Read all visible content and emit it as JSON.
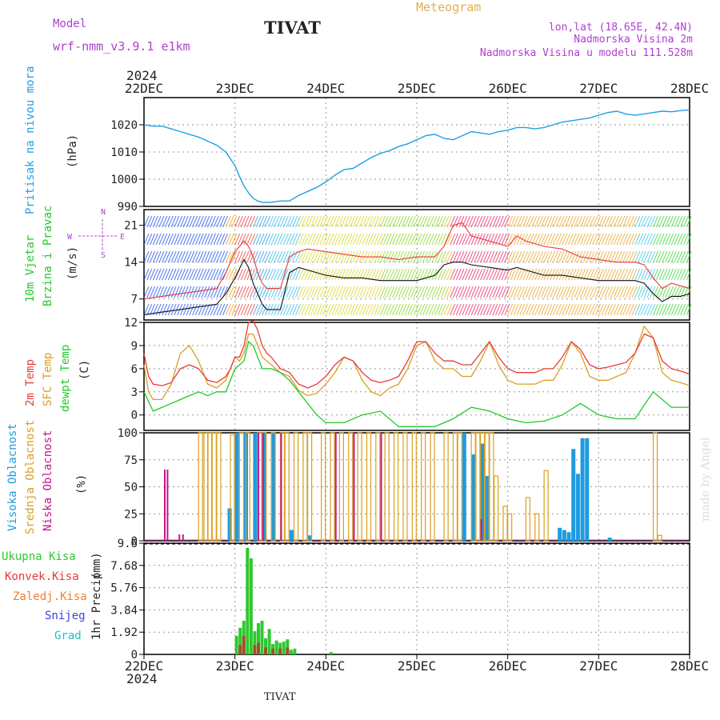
{
  "header": {
    "model_label": "Model",
    "model_name": "wrf-nmm_v3.9.1 e1km",
    "station": "TIVAT",
    "chart_title": "Meteogram",
    "lonlat": "lon,lat (18.65E, 42.4N)",
    "elevation": "Nadmorska Visina 2m",
    "model_elevation": "Nadmorska Visina u modelu 111.528m",
    "year": "2024",
    "footer_station": "TIVAT",
    "watermark": "made by Angel"
  },
  "colors": {
    "pressure": "#1ea0e6",
    "temp2m": "#e83a3a",
    "sfctemp": "#d9a020",
    "dewpt": "#22c82a",
    "high_cloud": "#1e9be0",
    "mid_cloud": "#d9a020",
    "low_cloud": "#c8148c",
    "total_precip": "#2ec82e",
    "conv_precip": "#e83a3a",
    "frozen_precip": "#f08030",
    "snow": "#4040e0",
    "graupel": "#20c0c0",
    "label_purple": "#b040d0"
  },
  "chart_data": [
    {
      "type": "line",
      "name": "pressure-panel",
      "ylabel": "Pritisak na nivou mora",
      "unit": "(hPa)",
      "ylim": [
        990,
        1030
      ],
      "yticks": [
        990,
        1000,
        1010,
        1020
      ],
      "x_days": [
        "22DEC",
        "23DEC",
        "24DEC",
        "25DEC",
        "26DEC",
        "27DEC",
        "28DEC"
      ],
      "grid": true,
      "series": [
        {
          "x": [
            0,
            0.1,
            0.2,
            0.3,
            0.4,
            0.5,
            0.6,
            0.7,
            0.8,
            0.9,
            1.0,
            1.05,
            1.1,
            1.15,
            1.2,
            1.25,
            1.3,
            1.35,
            1.4,
            1.5,
            1.6,
            1.7,
            1.8,
            1.9,
            2.0,
            2.1,
            2.2,
            2.3,
            2.4,
            2.5,
            2.6,
            2.7,
            2.8,
            2.9,
            3.0,
            3.1,
            3.2,
            3.3,
            3.4,
            3.5,
            3.6,
            3.7,
            3.8,
            3.9,
            4.0,
            4.1,
            4.2,
            4.3,
            4.4,
            4.5,
            4.6,
            4.7,
            4.8,
            4.9,
            5.0,
            5.1,
            5.2,
            5.3,
            5.4,
            5.5,
            5.6,
            5.7,
            5.8,
            5.9,
            6.0
          ],
          "values": [
            1020,
            1019.5,
            1019.5,
            1018.5,
            1017.5,
            1016.5,
            1015.5,
            1014,
            1012.5,
            1010,
            1005,
            1001,
            997.5,
            995,
            993,
            992,
            991.5,
            991.5,
            991.5,
            992,
            992,
            994,
            995.5,
            997,
            999,
            1001.5,
            1003.5,
            1004,
            1006,
            1008,
            1009.5,
            1010.5,
            1012,
            1013,
            1014.5,
            1016,
            1016.5,
            1015,
            1014.5,
            1016,
            1017.5,
            1017,
            1016.5,
            1017.5,
            1018,
            1019,
            1019,
            1018.5,
            1019,
            1020,
            1021,
            1021.5,
            1022,
            1022.5,
            1023.5,
            1024.5,
            1025,
            1024,
            1023.5,
            1024,
            1024.5,
            1025,
            1024.8,
            1025.2,
            1025.5
          ]
        }
      ]
    },
    {
      "type": "line",
      "name": "wind-panel",
      "ylabel": "10m Vjetar",
      "ylabel2": "Brzina i Pravac",
      "unit": "(m/s)",
      "compass": [
        "N",
        "E",
        "S",
        "W"
      ],
      "ylim": [
        3,
        24
      ],
      "yticks": [
        7,
        14,
        21
      ],
      "grid": true,
      "series": [
        {
          "name": "gust",
          "x": [
            0,
            0.2,
            0.4,
            0.6,
            0.8,
            0.9,
            1.0,
            1.1,
            1.15,
            1.2,
            1.25,
            1.3,
            1.35,
            1.4,
            1.5,
            1.6,
            1.7,
            1.8,
            2.0,
            2.2,
            2.4,
            2.6,
            2.8,
            3.0,
            3.2,
            3.3,
            3.4,
            3.5,
            3.6,
            3.8,
            4.0,
            4.1,
            4.2,
            4.4,
            4.6,
            4.8,
            5.0,
            5.2,
            5.4,
            5.5,
            5.6,
            5.7,
            5.8,
            5.9,
            6.0
          ],
          "values": [
            7,
            7.5,
            8,
            8.5,
            9,
            12,
            16,
            18,
            17,
            15,
            12,
            10,
            9,
            9,
            9,
            15,
            16,
            16.5,
            16,
            15.5,
            15,
            15,
            14.5,
            15,
            15,
            17,
            21,
            21.5,
            19,
            18,
            17,
            19,
            18,
            17,
            16.5,
            15,
            14.5,
            14,
            14,
            13.5,
            11,
            9,
            10,
            9.5,
            9
          ]
        },
        {
          "name": "speed",
          "x": [
            0,
            0.2,
            0.4,
            0.6,
            0.8,
            0.9,
            1.0,
            1.1,
            1.15,
            1.2,
            1.25,
            1.3,
            1.35,
            1.4,
            1.5,
            1.6,
            1.7,
            1.8,
            2.0,
            2.2,
            2.4,
            2.6,
            2.8,
            3.0,
            3.2,
            3.3,
            3.4,
            3.5,
            3.6,
            3.8,
            4.0,
            4.1,
            4.2,
            4.4,
            4.6,
            4.8,
            5.0,
            5.2,
            5.4,
            5.5,
            5.6,
            5.7,
            5.8,
            5.9,
            6.0
          ],
          "values": [
            4,
            4.5,
            5,
            5.5,
            6,
            8,
            11,
            14.5,
            13,
            10,
            8,
            6,
            5,
            5,
            5,
            12,
            13,
            12.5,
            11.5,
            11,
            11,
            10.5,
            10.5,
            10.5,
            11.5,
            13.5,
            14,
            14,
            13.5,
            13,
            12.5,
            13,
            12.5,
            11.5,
            11.5,
            11,
            10.5,
            10.5,
            10.5,
            10,
            8,
            6.5,
            7.5,
            7.5,
            8
          ]
        }
      ]
    },
    {
      "type": "line",
      "name": "temp-panel",
      "ylabel": "2m Temp",
      "ylabel2": "SFC Temp",
      "ylabel3": "dewpt Temp",
      "unit": "(C)",
      "ylim": [
        -2,
        12
      ],
      "yticks": [
        0,
        3,
        6,
        9,
        12
      ],
      "grid": true,
      "series": [
        {
          "name": "2m Temp",
          "x": [
            0,
            0.05,
            0.1,
            0.2,
            0.3,
            0.4,
            0.5,
            0.6,
            0.7,
            0.8,
            0.9,
            0.95,
            1.0,
            1.05,
            1.1,
            1.15,
            1.2,
            1.25,
            1.3,
            1.35,
            1.4,
            1.5,
            1.6,
            1.7,
            1.8,
            1.9,
            2.0,
            2.1,
            2.2,
            2.3,
            2.4,
            2.5,
            2.6,
            2.7,
            2.8,
            2.9,
            3.0,
            3.1,
            3.2,
            3.3,
            3.4,
            3.5,
            3.6,
            3.7,
            3.8,
            3.9,
            4.0,
            4.1,
            4.2,
            4.3,
            4.4,
            4.5,
            4.6,
            4.7,
            4.8,
            4.9,
            5.0,
            5.1,
            5.2,
            5.3,
            5.4,
            5.5,
            5.6,
            5.7,
            5.8,
            5.9,
            6.0
          ],
          "values": [
            8,
            5,
            4,
            3.8,
            4.2,
            6,
            6.5,
            6,
            4.5,
            4.2,
            5,
            6,
            7.5,
            7.5,
            9,
            12,
            12.2,
            11,
            9,
            8,
            7.5,
            6,
            5.5,
            4,
            3.5,
            4,
            5,
            6.5,
            7.5,
            7,
            5.5,
            4.5,
            4.2,
            4.5,
            5,
            7,
            9.5,
            9.5,
            8,
            7,
            7,
            6.5,
            6.5,
            8,
            9.5,
            7.5,
            6,
            5.5,
            5.5,
            5.5,
            6,
            6,
            7.5,
            9.5,
            8.5,
            6.5,
            6,
            6.2,
            6.5,
            6.8,
            8,
            10.5,
            10,
            7,
            6,
            5.7,
            5.3
          ]
        },
        {
          "name": "SFC Temp",
          "x": [
            0,
            0.05,
            0.1,
            0.2,
            0.3,
            0.4,
            0.5,
            0.6,
            0.7,
            0.8,
            0.9,
            0.95,
            1.0,
            1.05,
            1.1,
            1.15,
            1.2,
            1.25,
            1.3,
            1.35,
            1.4,
            1.5,
            1.6,
            1.7,
            1.8,
            1.9,
            2.0,
            2.1,
            2.2,
            2.3,
            2.4,
            2.5,
            2.6,
            2.7,
            2.8,
            2.9,
            3.0,
            3.1,
            3.2,
            3.3,
            3.4,
            3.5,
            3.6,
            3.7,
            3.8,
            3.9,
            4.0,
            4.1,
            4.2,
            4.3,
            4.4,
            4.5,
            4.6,
            4.7,
            4.8,
            4.9,
            5.0,
            5.1,
            5.2,
            5.3,
            5.4,
            5.5,
            5.6,
            5.7,
            5.8,
            5.9,
            6.0
          ],
          "values": [
            6.5,
            3,
            2,
            2,
            4,
            8,
            9,
            7,
            4,
            3.5,
            4.5,
            6,
            7.5,
            7,
            8,
            10.5,
            10.5,
            9,
            7.5,
            7,
            6.5,
            5.5,
            5,
            3.2,
            2.5,
            2.8,
            4,
            5.5,
            7.5,
            7,
            4.5,
            3,
            2.5,
            3.5,
            4,
            6,
            9,
            9.5,
            7,
            6,
            6,
            5,
            5,
            7,
            9.5,
            6.5,
            4.5,
            4,
            4,
            4,
            4.5,
            4.5,
            6.5,
            9.5,
            8,
            5,
            4.5,
            4.5,
            5,
            5.5,
            8,
            11.5,
            10,
            5.5,
            4.5,
            4.2,
            3.8
          ]
        },
        {
          "name": "dewpt Temp",
          "x": [
            0,
            0.1,
            0.2,
            0.3,
            0.4,
            0.5,
            0.6,
            0.7,
            0.8,
            0.9,
            1.0,
            1.05,
            1.1,
            1.15,
            1.2,
            1.25,
            1.3,
            1.35,
            1.4,
            1.5,
            1.6,
            1.7,
            1.8,
            1.9,
            2.0,
            2.2,
            2.4,
            2.6,
            2.8,
            3.0,
            3.2,
            3.4,
            3.6,
            3.8,
            4.0,
            4.2,
            4.4,
            4.6,
            4.8,
            5.0,
            5.2,
            5.4,
            5.6,
            5.8,
            6.0
          ],
          "values": [
            3,
            0.5,
            1,
            1.5,
            2,
            2.5,
            3,
            2.5,
            3,
            3,
            6,
            6.5,
            7,
            9.5,
            9,
            7.5,
            6,
            6,
            6,
            5.5,
            4.5,
            3,
            1.5,
            0,
            -1,
            -1,
            0,
            0.5,
            -1.5,
            -1.5,
            -1.5,
            -0.5,
            1,
            0.5,
            -0.5,
            -1,
            -0.8,
            0,
            1.5,
            0,
            -0.5,
            -0.5,
            3,
            1,
            1
          ]
        }
      ]
    },
    {
      "type": "bar",
      "name": "cloud-panel",
      "ylabel": "Visoka Oblacnost",
      "ylabel2": "Srednja Oblacnost",
      "ylabel3": "Niska Oblacnost",
      "unit": "(%)",
      "ylim": [
        0,
        100
      ],
      "yticks": [
        0,
        25,
        50,
        75,
        100
      ],
      "grid": true,
      "series": [
        {
          "name": "Visoka Oblacnost",
          "x": [
            0.92,
            1.0,
            1.1,
            1.2,
            1.3,
            1.4,
            1.6,
            1.8,
            3.5,
            3.6,
            3.7,
            3.75,
            4.55,
            4.6,
            4.65,
            4.7,
            4.75,
            4.8,
            4.85,
            5.1
          ],
          "values": [
            30,
            100,
            100,
            100,
            100,
            100,
            10,
            5,
            100,
            80,
            90,
            60,
            12,
            10,
            8,
            85,
            62,
            95,
            95,
            3
          ]
        },
        {
          "name": "Srednja Oblacnost",
          "x": [
            0.6,
            0.66,
            0.7,
            0.75,
            0.8,
            0.95,
            1.05,
            1.12,
            1.25,
            1.3,
            1.4,
            1.5,
            1.55,
            1.65,
            1.75,
            1.8,
            1.95,
            2.05,
            2.15,
            2.25,
            2.35,
            2.45,
            2.55,
            2.65,
            2.75,
            2.85,
            2.95,
            3.05,
            3.15,
            3.3,
            3.4,
            3.45,
            3.6,
            3.65,
            3.7,
            3.75,
            3.8,
            3.85,
            3.95,
            4.0,
            4.2,
            4.3,
            4.4,
            5.6,
            5.65
          ],
          "values": [
            100,
            100,
            100,
            100,
            100,
            98,
            100,
            100,
            100,
            100,
            100,
            100,
            100,
            100,
            100,
            100,
            100,
            100,
            100,
            100,
            100,
            100,
            100,
            100,
            100,
            100,
            100,
            100,
            100,
            100,
            100,
            100,
            100,
            100,
            100,
            100,
            100,
            60,
            32,
            25,
            40,
            25,
            65,
            100,
            5
          ]
        },
        {
          "name": "Niska Oblacnost",
          "x": [
            0.22,
            0.25,
            0.38,
            0.42,
            1.25,
            1.3,
            1.5,
            2.1,
            2.3,
            2.6,
            3.7
          ],
          "values": [
            66,
            66,
            6,
            6,
            100,
            100,
            100,
            100,
            100,
            100,
            20
          ]
        }
      ]
    },
    {
      "type": "bar",
      "name": "precip-panel",
      "ylabel": "1hr Precip",
      "unit": "(mm)",
      "ylim": [
        0,
        9.6
      ],
      "yticks": [
        0,
        1.92,
        3.84,
        5.76,
        7.68,
        9.6
      ],
      "grid": true,
      "legend": [
        "Ukupna Kisa",
        "Konvek.Kisa",
        "Zaledj.Kisa",
        "Snijeg",
        "Grad"
      ],
      "series": [
        {
          "name": "Ukupna Kisa",
          "x": [
            1.0,
            1.04,
            1.08,
            1.12,
            1.16,
            1.2,
            1.24,
            1.28,
            1.32,
            1.36,
            1.4,
            1.44,
            1.48,
            1.52,
            1.56,
            1.6,
            1.64,
            2.04
          ],
          "values": [
            1.6,
            2.3,
            2.9,
            9.2,
            8.3,
            2.0,
            2.7,
            2.9,
            1.4,
            2.2,
            0.9,
            1.2,
            1.0,
            1.1,
            1.3,
            0.4,
            0.5,
            0.2
          ]
        },
        {
          "name": "Konvek.Kisa",
          "x": [
            1.04,
            1.08,
            1.2,
            1.24,
            1.32,
            1.4,
            1.48,
            1.56
          ],
          "values": [
            0.8,
            1.6,
            0.8,
            1.0,
            0.6,
            0.5,
            0.5,
            0.6
          ]
        }
      ]
    }
  ]
}
